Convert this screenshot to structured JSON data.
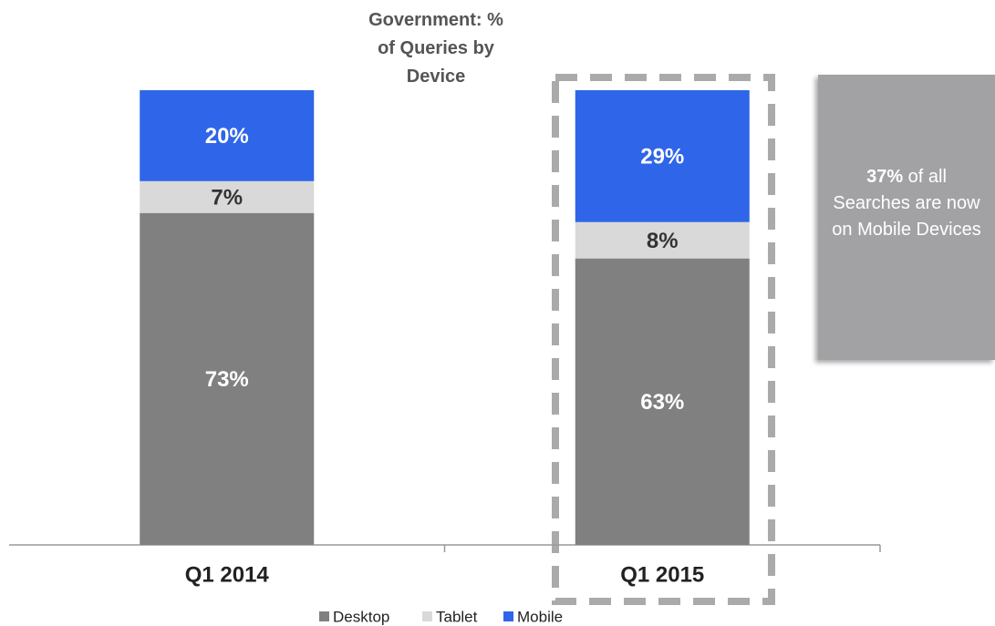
{
  "chart_data": {
    "type": "stacked_bar",
    "title": "Government: % of Queries by Device",
    "categories": [
      "Q1 2014",
      "Q1 2015"
    ],
    "series": [
      {
        "name": "Desktop",
        "color": "#808080",
        "values": [
          73,
          63
        ],
        "value_labels": [
          "73%",
          "63%"
        ]
      },
      {
        "name": "Tablet",
        "color": "#d9d9d9",
        "values": [
          7,
          8
        ],
        "value_labels": [
          "7%",
          "8%"
        ]
      },
      {
        "name": "Mobile",
        "color": "#2f65e8",
        "values": [
          20,
          29
        ],
        "value_labels": [
          "20%",
          "29%"
        ]
      }
    ],
    "ylim": [
      0,
      100
    ],
    "annotation": {
      "highlight": "37%",
      "text": "of all Searches are now on Mobile Devices"
    }
  }
}
